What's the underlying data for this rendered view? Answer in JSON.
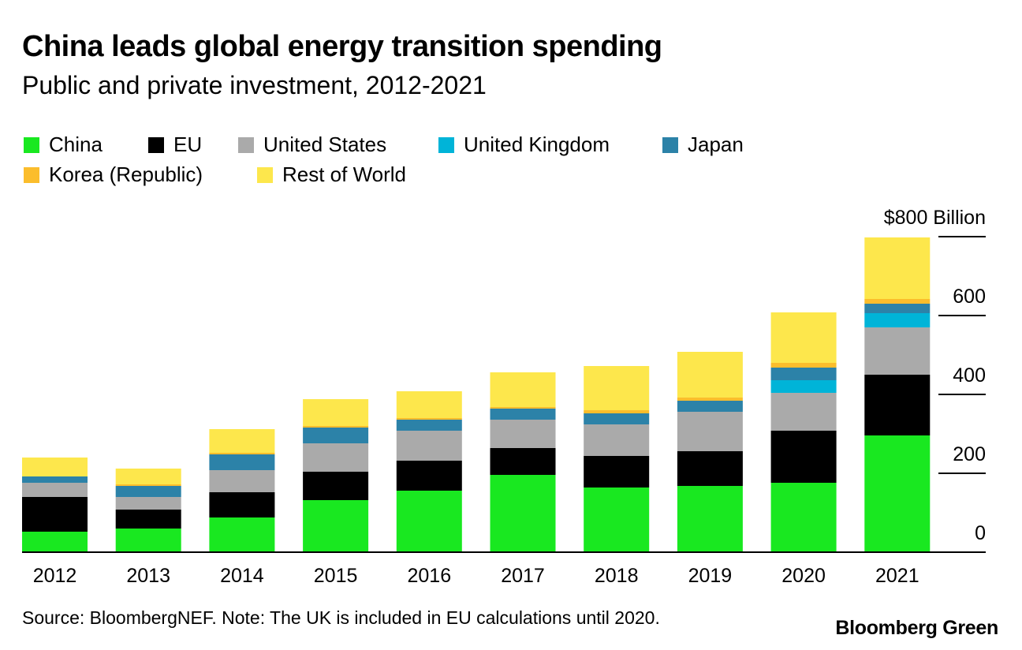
{
  "title": "China leads global energy transition spending",
  "subtitle": "Public and private investment, 2012-2021",
  "source": "Source: BloombergNEF. Note: The UK is included in EU calculations until 2020.",
  "brand": "Bloomberg Green",
  "chart_data": {
    "type": "bar",
    "stacked": true,
    "categories": [
      "2012",
      "2013",
      "2014",
      "2015",
      "2016",
      "2017",
      "2018",
      "2019",
      "2020",
      "2021"
    ],
    "series": [
      {
        "name": "China",
        "color": "#19e820",
        "values": [
          52,
          60,
          88,
          132,
          156,
          196,
          164,
          168,
          176,
          296
        ]
      },
      {
        "name": "EU",
        "color": "#000000",
        "values": [
          88,
          48,
          64,
          72,
          76,
          68,
          80,
          88,
          132,
          154
        ]
      },
      {
        "name": "United States",
        "color": "#aaaaaa",
        "values": [
          36,
          32,
          56,
          72,
          76,
          72,
          80,
          100,
          96,
          120
        ]
      },
      {
        "name": "United Kingdom",
        "color": "#00b4d8",
        "values": [
          0,
          0,
          0,
          0,
          0,
          0,
          0,
          0,
          32,
          36
        ]
      },
      {
        "name": "Japan",
        "color": "#2c82a8",
        "values": [
          16,
          28,
          40,
          40,
          28,
          28,
          28,
          28,
          32,
          24
        ]
      },
      {
        "name": "Korea (Republic)",
        "color": "#fbbd2c",
        "values": [
          0,
          4,
          4,
          4,
          4,
          4,
          8,
          8,
          12,
          12
        ]
      },
      {
        "name": "Rest of World",
        "color": "#fde74c",
        "values": [
          48,
          40,
          60,
          68,
          68,
          88,
          112,
          116,
          128,
          156
        ]
      }
    ],
    "ylim": [
      0,
      800
    ],
    "yticks": [
      0,
      200,
      400,
      600,
      800
    ],
    "ytick_labels": [
      "0",
      "200",
      "400",
      "600",
      "$800 Billion"
    ],
    "xlabel": "",
    "ylabel": "",
    "legend_position": "top-left",
    "grid": false
  }
}
